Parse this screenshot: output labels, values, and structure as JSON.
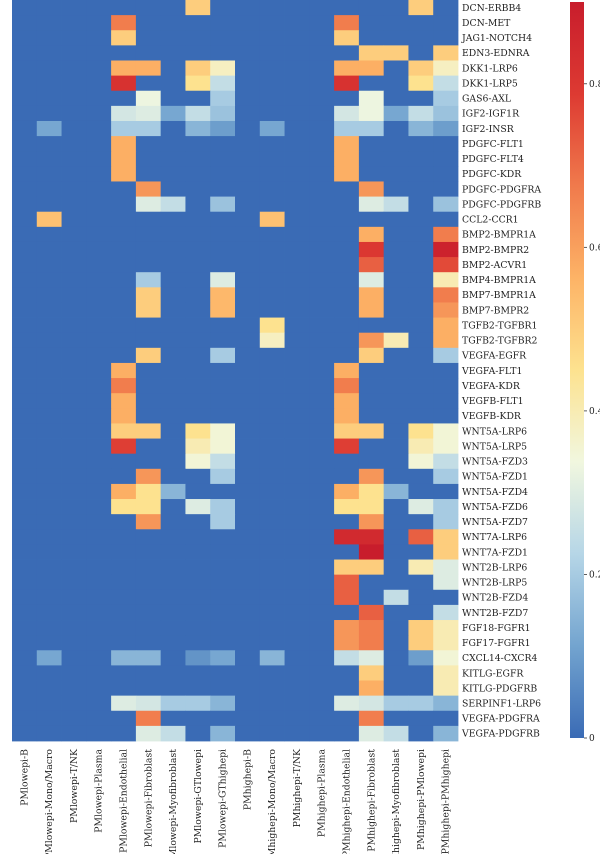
{
  "chart_data": {
    "type": "heatmap",
    "title": "",
    "xlabel": "",
    "ylabel": "",
    "columns": [
      "PMlowepi-B",
      "PMlowepi-Mono/Macro",
      "PMlowepi-T/NK",
      "PMlowepi-Plasma",
      "PMlowepi-Endothelial",
      "PMlowepi-Fibroblast",
      "PMlowepi-Myofibroblast",
      "PMlowepi-GTlowepi",
      "PMlowepi-GThighepi",
      "PMhighepi-B",
      "PMhighepi-Mono/Macro",
      "PMhighepi-T/NK",
      "PMhighepi-Plasma",
      "PMhighepi-Endothelial",
      "PMhighepi-Fibroblast",
      "PMhighepi-Myofibroblast",
      "PMhighepi-PMlowepi",
      "PMhighepi-PMhighepi"
    ],
    "rows": [
      "DCN-ERBB4",
      "DCN-MET",
      "JAG1-NOTCH4",
      "EDN3-EDNRA",
      "DKK1-LRP6",
      "DKK1-LRP5",
      "GAS6-AXL",
      "IGF2-IGF1R",
      "IGF2-INSR",
      "PDGFC-FLT1",
      "PDGFC-FLT4",
      "PDGFC-KDR",
      "PDGFC-PDGFRA",
      "PDGFC-PDGFRB",
      "CCL2-CCR1",
      "BMP2-BMPR1A",
      "BMP2-BMPR2",
      "BMP2-ACVR1",
      "BMP4-BMPR1A",
      "BMP7-BMPR1A",
      "BMP7-BMPR2",
      "TGFB2-TGFBR1",
      "TGFB2-TGFBR2",
      "VEGFA-EGFR",
      "VEGFA-FLT1",
      "VEGFA-KDR",
      "VEGFB-FLT1",
      "VEGFB-KDR",
      "WNT5A-LRP6",
      "WNT5A-LRP5",
      "WNT5A-FZD3",
      "WNT5A-FZD1",
      "WNT5A-FZD4",
      "WNT5A-FZD6",
      "WNT5A-FZD7",
      "WNT7A-LRP6",
      "WNT7A-FZD1",
      "WNT2B-LRP6",
      "WNT2B-LRP5",
      "WNT2B-FZD4",
      "WNT2B-FZD7",
      "FGF18-FGFR1",
      "FGF17-FGFR1",
      "CXCL14-CXCR4",
      "KITLG-EGFR",
      "KITLG-PDGFRB",
      "SERPINF1-LRP6",
      "VEGFA-PDGFRA",
      "VEGFA-PDGFRB"
    ],
    "values": [
      [
        0,
        0,
        0,
        0,
        0,
        0,
        0,
        0.5,
        0,
        0,
        0,
        0,
        0,
        0,
        0,
        0,
        0.5,
        0
      ],
      [
        0,
        0,
        0,
        0,
        0.67,
        0,
        0,
        0,
        0,
        0,
        0,
        0,
        0,
        0.67,
        0,
        0,
        0,
        0
      ],
      [
        0,
        0,
        0,
        0,
        0.5,
        0,
        0,
        0,
        0,
        0,
        0,
        0,
        0,
        0.5,
        0,
        0,
        0,
        0
      ],
      [
        0,
        0,
        0,
        0,
        0,
        0,
        0,
        0,
        0,
        0,
        0,
        0,
        0,
        0,
        0.5,
        0.5,
        0,
        0.5
      ],
      [
        0,
        0,
        0,
        0,
        0.57,
        0.57,
        0,
        0.5,
        0.38,
        0,
        0,
        0,
        0,
        0.57,
        0.57,
        0,
        0.5,
        0.38
      ],
      [
        0,
        0,
        0,
        0,
        0.82,
        0,
        0,
        0.45,
        0.25,
        0,
        0,
        0,
        0,
        0.82,
        0,
        0,
        0.45,
        0.25
      ],
      [
        0,
        0,
        0,
        0,
        0,
        0.33,
        0,
        0,
        0.2,
        0,
        0,
        0,
        0,
        0,
        0.33,
        0,
        0,
        0.2
      ],
      [
        0,
        0,
        0,
        0,
        0.28,
        0.3,
        0.12,
        0.25,
        0.18,
        0,
        0,
        0,
        0,
        0.28,
        0.33,
        0.12,
        0.25,
        0.18
      ],
      [
        0,
        0.12,
        0,
        0,
        0.2,
        0.2,
        0,
        0.15,
        0.1,
        0,
        0.12,
        0,
        0,
        0.2,
        0.2,
        0,
        0.15,
        0.1
      ],
      [
        0,
        0,
        0,
        0,
        0.57,
        0,
        0,
        0,
        0,
        0,
        0,
        0,
        0,
        0.57,
        0,
        0,
        0,
        0
      ],
      [
        0,
        0,
        0,
        0,
        0.57,
        0,
        0,
        0,
        0,
        0,
        0,
        0,
        0,
        0.57,
        0,
        0,
        0,
        0
      ],
      [
        0,
        0,
        0,
        0,
        0.57,
        0,
        0,
        0,
        0,
        0,
        0,
        0,
        0,
        0.57,
        0,
        0,
        0,
        0
      ],
      [
        0,
        0,
        0,
        0,
        0,
        0.62,
        0,
        0,
        0,
        0,
        0,
        0,
        0,
        0,
        0.62,
        0,
        0,
        0
      ],
      [
        0,
        0,
        0,
        0,
        0,
        0.3,
        0.25,
        0,
        0.18,
        0,
        0,
        0,
        0,
        0,
        0.3,
        0.25,
        0,
        0.18
      ],
      [
        0,
        0.53,
        0,
        0,
        0,
        0,
        0,
        0,
        0,
        0,
        0.53,
        0,
        0,
        0,
        0,
        0,
        0,
        0
      ],
      [
        0,
        0,
        0,
        0,
        0,
        0,
        0,
        0,
        0,
        0,
        0,
        0,
        0,
        0,
        0.57,
        0,
        0,
        0.67
      ],
      [
        0,
        0,
        0,
        0,
        0,
        0,
        0,
        0,
        0,
        0,
        0,
        0,
        0,
        0,
        0.8,
        0,
        0,
        0.88
      ],
      [
        0,
        0,
        0,
        0,
        0,
        0,
        0,
        0,
        0,
        0,
        0,
        0,
        0,
        0,
        0.72,
        0,
        0,
        0.76
      ],
      [
        0,
        0,
        0,
        0,
        0,
        0.2,
        0,
        0,
        0.3,
        0,
        0,
        0,
        0,
        0,
        0.3,
        0,
        0,
        0.4
      ],
      [
        0,
        0,
        0,
        0,
        0,
        0.5,
        0,
        0,
        0.55,
        0,
        0,
        0,
        0,
        0,
        0.57,
        0,
        0,
        0.67
      ],
      [
        0,
        0,
        0,
        0,
        0,
        0.5,
        0,
        0,
        0.55,
        0,
        0,
        0,
        0,
        0,
        0.57,
        0,
        0,
        0.62
      ],
      [
        0,
        0,
        0,
        0,
        0,
        0,
        0,
        0,
        0,
        0,
        0.45,
        0,
        0,
        0,
        0,
        0,
        0,
        0.57
      ],
      [
        0,
        0,
        0,
        0,
        0,
        0,
        0,
        0,
        0,
        0,
        0.38,
        0,
        0,
        0,
        0.62,
        0.4,
        0,
        0.57
      ],
      [
        0,
        0,
        0,
        0,
        0,
        0.5,
        0,
        0,
        0.2,
        0,
        0,
        0,
        0,
        0,
        0.5,
        0,
        0,
        0.2
      ],
      [
        0,
        0,
        0,
        0,
        0.57,
        0,
        0,
        0,
        0,
        0,
        0,
        0,
        0,
        0.57,
        0,
        0,
        0,
        0
      ],
      [
        0,
        0,
        0,
        0,
        0.67,
        0,
        0,
        0,
        0,
        0,
        0,
        0,
        0,
        0.67,
        0,
        0,
        0,
        0
      ],
      [
        0,
        0,
        0,
        0,
        0.57,
        0,
        0,
        0,
        0,
        0,
        0,
        0,
        0,
        0.57,
        0,
        0,
        0,
        0
      ],
      [
        0,
        0,
        0,
        0,
        0.57,
        0,
        0,
        0,
        0,
        0,
        0,
        0,
        0,
        0.57,
        0,
        0,
        0,
        0
      ],
      [
        0,
        0,
        0,
        0,
        0.5,
        0.5,
        0,
        0.45,
        0.35,
        0,
        0,
        0,
        0,
        0.5,
        0.5,
        0,
        0.45,
        0.35
      ],
      [
        0,
        0,
        0,
        0,
        0.78,
        0,
        0,
        0.4,
        0.35,
        0,
        0,
        0,
        0,
        0.78,
        0,
        0,
        0.4,
        0.35
      ],
      [
        0,
        0,
        0,
        0,
        0,
        0,
        0,
        0.35,
        0.25,
        0,
        0,
        0,
        0,
        0,
        0,
        0,
        0.35,
        0.25
      ],
      [
        0,
        0,
        0,
        0,
        0,
        0.62,
        0,
        0,
        0.2,
        0,
        0,
        0,
        0,
        0,
        0.62,
        0,
        0,
        0.2
      ],
      [
        0,
        0,
        0,
        0,
        0.57,
        0.45,
        0.15,
        0,
        0,
        0,
        0,
        0,
        0,
        0.57,
        0.45,
        0.15,
        0,
        0
      ],
      [
        0,
        0,
        0,
        0,
        0.45,
        0.45,
        0,
        0.3,
        0.2,
        0,
        0,
        0,
        0,
        0.45,
        0.45,
        0,
        0.3,
        0.2
      ],
      [
        0,
        0,
        0,
        0,
        0,
        0.62,
        0,
        0,
        0.2,
        0,
        0,
        0,
        0,
        0,
        0.62,
        0,
        0,
        0.2
      ],
      [
        0,
        0,
        0,
        0,
        0,
        0,
        0,
        0,
        0,
        0,
        0,
        0,
        0,
        0.85,
        0.85,
        0,
        0.72,
        0.5
      ],
      [
        0,
        0,
        0,
        0,
        0,
        0,
        0,
        0,
        0,
        0,
        0,
        0,
        0,
        0,
        0.9,
        0,
        0,
        0.5
      ],
      [
        0,
        0,
        0,
        0,
        0,
        0,
        0,
        0,
        0,
        0,
        0,
        0,
        0,
        0.5,
        0.5,
        0,
        0.4,
        0.3
      ],
      [
        0,
        0,
        0,
        0,
        0,
        0,
        0,
        0,
        0,
        0,
        0,
        0,
        0,
        0.72,
        0,
        0,
        0,
        0.3
      ],
      [
        0,
        0,
        0,
        0,
        0,
        0,
        0,
        0,
        0,
        0,
        0,
        0,
        0,
        0.72,
        0,
        0.25,
        0,
        0
      ],
      [
        0,
        0,
        0,
        0,
        0,
        0,
        0,
        0,
        0,
        0,
        0,
        0,
        0,
        0,
        0.72,
        0,
        0,
        0.25
      ],
      [
        0,
        0,
        0,
        0,
        0,
        0,
        0,
        0,
        0,
        0,
        0,
        0,
        0,
        0.62,
        0.67,
        0,
        0.5,
        0.4
      ],
      [
        0,
        0,
        0,
        0,
        0,
        0,
        0,
        0,
        0,
        0,
        0,
        0,
        0,
        0.62,
        0.67,
        0,
        0.5,
        0.4
      ],
      [
        0,
        0.12,
        0,
        0,
        0.15,
        0.15,
        0,
        0.08,
        0.12,
        0,
        0.15,
        0,
        0,
        0.25,
        0.3,
        0,
        0.1,
        0.35
      ],
      [
        0,
        0,
        0,
        0,
        0,
        0,
        0,
        0,
        0,
        0,
        0,
        0,
        0,
        0,
        0.5,
        0,
        0,
        0.4
      ],
      [
        0,
        0,
        0,
        0,
        0,
        0,
        0,
        0,
        0,
        0,
        0,
        0,
        0,
        0,
        0.57,
        0,
        0,
        0.4
      ],
      [
        0,
        0,
        0,
        0,
        0.3,
        0.28,
        0.2,
        0.2,
        0.15,
        0,
        0,
        0,
        0,
        0.3,
        0.28,
        0.2,
        0.2,
        0.15
      ],
      [
        0,
        0,
        0,
        0,
        0,
        0.67,
        0,
        0,
        0,
        0,
        0,
        0,
        0,
        0,
        0.67,
        0,
        0,
        0
      ],
      [
        0,
        0,
        0,
        0,
        0,
        0.3,
        0.25,
        0,
        0.15,
        0,
        0,
        0,
        0,
        0,
        0.3,
        0.25,
        0,
        0.15
      ]
    ],
    "colorbar": {
      "range": [
        0,
        0.9
      ],
      "ticks": [
        0,
        0.2,
        0.4,
        0.6,
        0.8
      ],
      "tick_labels": [
        "0",
        "0.2",
        "0.4",
        "0.6",
        "0.8"
      ],
      "position": "right"
    },
    "colorscale": [
      "#3a6bb5",
      "#73a4cf",
      "#b6d6e7",
      "#f1f7df",
      "#fde28f",
      "#fdb366",
      "#f07a4c",
      "#dd3a32",
      "#c81d2c"
    ]
  }
}
